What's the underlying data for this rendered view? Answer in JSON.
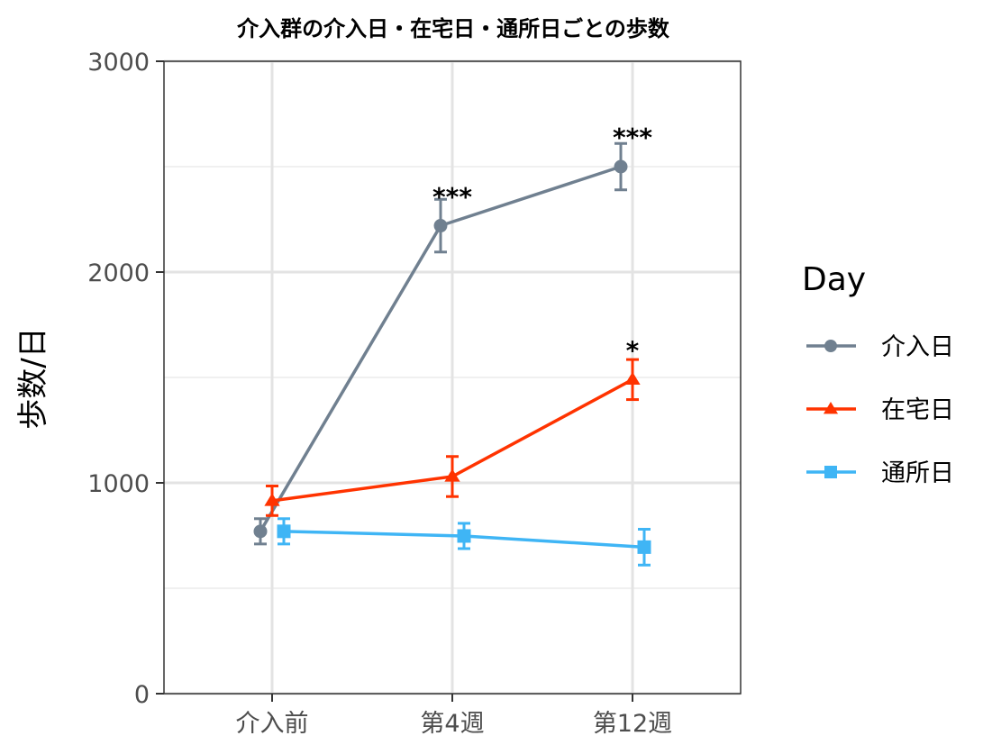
{
  "chart_data": {
    "type": "line",
    "title": "介入群の介入日・在宅日・通所日ごとの歩数",
    "xlabel": "",
    "ylabel": "歩数/日",
    "categories": [
      "介入前",
      "第4週",
      "第12週"
    ],
    "ylim": [
      0,
      3000
    ],
    "yticks": [
      0,
      1000,
      2000,
      3000
    ],
    "grid": true,
    "legend": {
      "title": "Day",
      "placement": "right"
    },
    "series": [
      {
        "name": "介入日",
        "color": "#708090",
        "marker": "circle",
        "values": [
          770,
          2220,
          2500
        ],
        "error": [
          60,
          125,
          110
        ]
      },
      {
        "name": "在宅日",
        "color": "#ff3300",
        "marker": "triangle",
        "values": [
          915,
          1030,
          1490
        ],
        "error": [
          70,
          95,
          95
        ]
      },
      {
        "name": "通所日",
        "color": "#3fb5f5",
        "marker": "square",
        "values": [
          770,
          748,
          695
        ],
        "error": [
          60,
          60,
          85
        ]
      }
    ],
    "annotations": [
      {
        "category": "第4週",
        "value": 2360,
        "text": "***"
      },
      {
        "category": "第12週",
        "value": 2640,
        "text": "***"
      },
      {
        "category": "第12週",
        "value": 1630,
        "text": "*"
      }
    ]
  }
}
